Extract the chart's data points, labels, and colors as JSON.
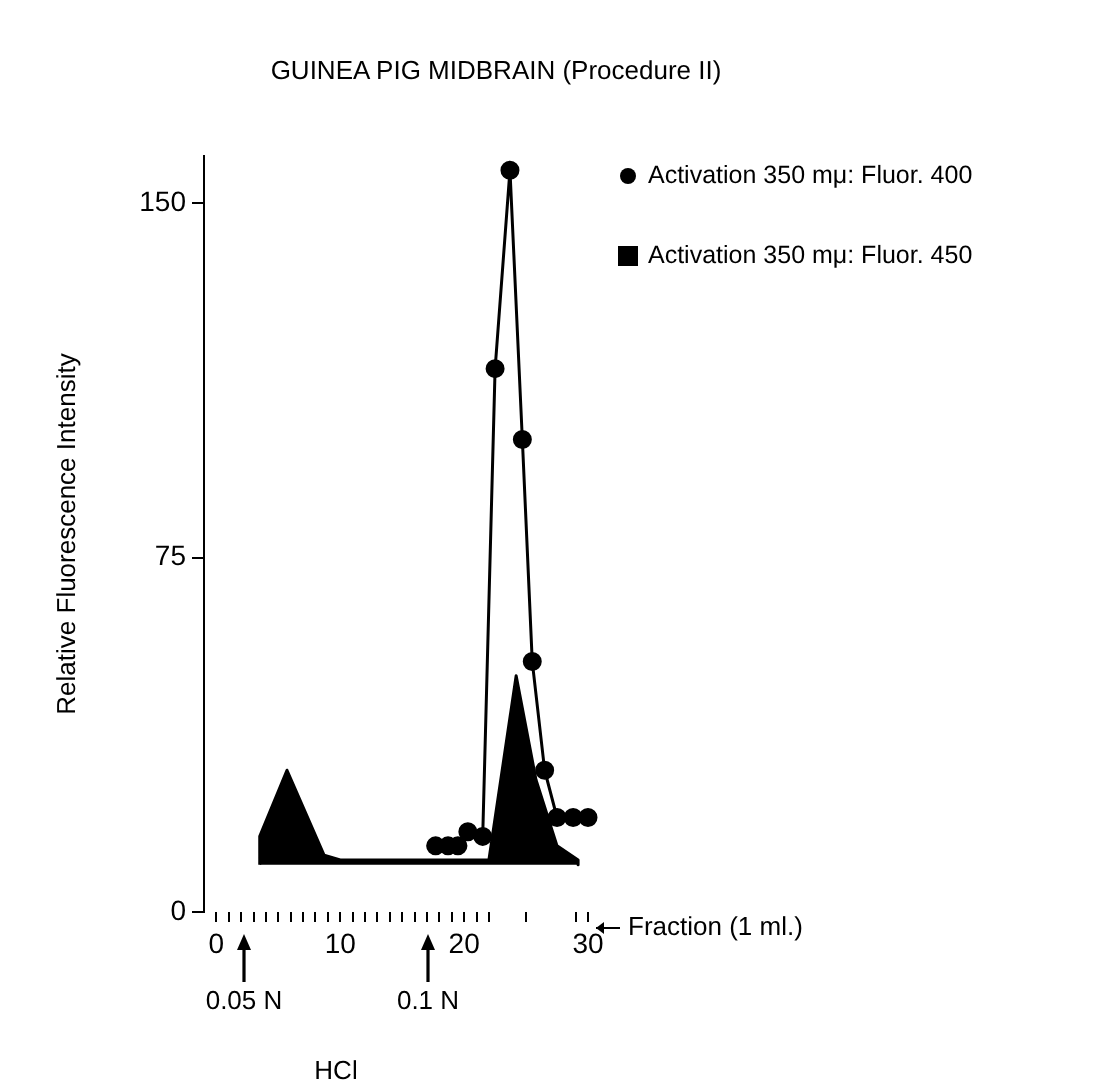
{
  "chart_data": {
    "type": "line",
    "title": "GUINEA PIG MIDBRAIN (Procedure II)",
    "xlabel": "Fraction (1 ml.)",
    "ylabel": "Relative Fluorescence Intensity",
    "xlim": [
      -1,
      30
    ],
    "xticks": [
      0,
      {
        "value": 1,
        "label": null
      },
      {
        "value": 2,
        "label": null
      },
      {
        "value": 3,
        "label": null
      },
      {
        "value": 4,
        "label": null
      },
      {
        "value": 5,
        "label": null
      },
      {
        "value": 6,
        "label": null
      },
      {
        "value": 7,
        "label": null
      },
      {
        "value": 8,
        "label": null
      },
      {
        "value": 9,
        "label": null
      },
      10,
      {
        "value": 11,
        "label": null
      },
      {
        "value": 12,
        "label": null
      },
      {
        "value": 13,
        "label": null
      },
      {
        "value": 14,
        "label": null
      },
      {
        "value": 15,
        "label": null
      },
      {
        "value": 16,
        "label": null
      },
      {
        "value": 17,
        "label": null
      },
      {
        "value": 18,
        "label": null
      },
      {
        "value": 19,
        "label": null
      },
      20,
      {
        "value": 21,
        "label": null
      },
      {
        "value": 22,
        "label": null
      },
      {
        "value": 25,
        "label": null
      },
      {
        "value": 29,
        "label": null
      },
      30
    ],
    "ylim": [
      0,
      160
    ],
    "yticks": [
      0,
      75,
      150
    ],
    "grid": false,
    "legend": "top right",
    "series": [
      {
        "name": "Activation 350 mμ: Fluor. 400",
        "marker": "circle",
        "color": "#000000",
        "x": [
          17.7,
          18.7,
          19.5,
          20.3,
          21.5,
          22.5,
          23.7,
          24.7,
          25.5,
          26.5,
          27.5,
          28.8,
          30
        ],
        "values": [
          14,
          14,
          14,
          17,
          16,
          115,
          157,
          100,
          53,
          30,
          20,
          20,
          20
        ]
      },
      {
        "name": "Activation 350 mμ: Fluor. 450",
        "type": "area",
        "color": "#000000",
        "x": [
          3.5,
          3.5,
          5.7,
          8.7,
          10,
          22,
          24.2,
          25.8,
          27.5,
          29.2,
          29.2
        ],
        "values": [
          10,
          16,
          30,
          12,
          11,
          11,
          50,
          28,
          14,
          11,
          10
        ]
      }
    ],
    "annotations": [
      "0.05 N",
      "0.1 N",
      "HCl"
    ]
  }
}
